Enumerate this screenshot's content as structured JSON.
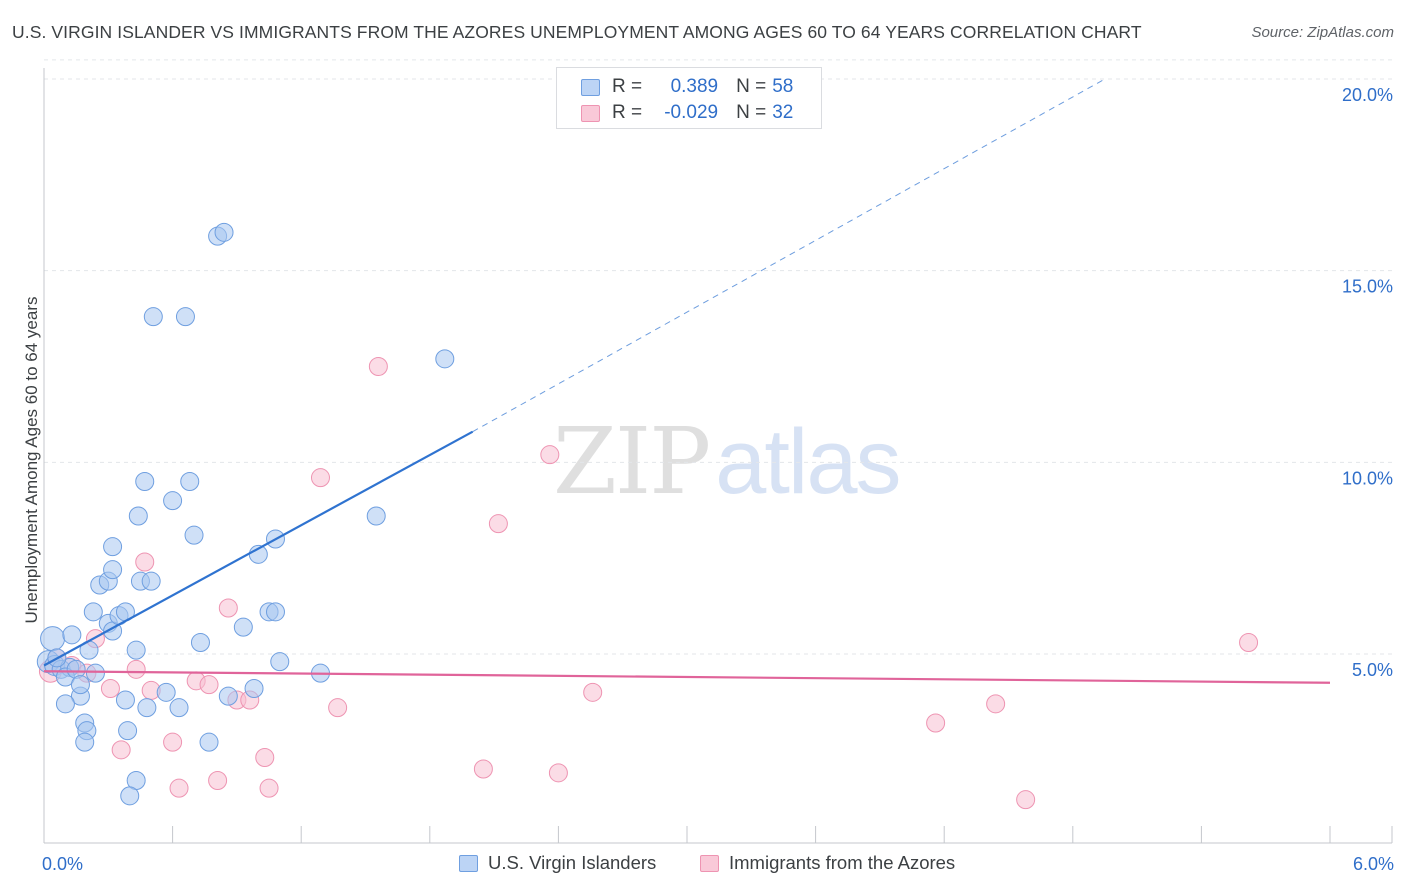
{
  "title": "U.S. VIRGIN ISLANDER VS IMMIGRANTS FROM THE AZORES UNEMPLOYMENT AMONG AGES 60 TO 64 YEARS CORRELATION CHART",
  "source": "Source: ZipAtlas.com",
  "watermark": {
    "part1": "ZIP",
    "part2": "atlas"
  },
  "stats": {
    "row1": {
      "r_label": "R =",
      "r_value": "0.389",
      "n_label": "N =",
      "n_value": "58"
    },
    "row2": {
      "r_label": "R =",
      "r_value": "-0.029",
      "n_label": "N =",
      "n_value": "32"
    }
  },
  "legend": {
    "item1": "U.S. Virgin Islanders",
    "item2": "Immigrants from the Azores"
  },
  "colors": {
    "blue_fill": "#a8c6f0",
    "blue_stroke": "#6f9fe0",
    "blue_line": "#2f73d0",
    "pink_fill": "#f7bfd2",
    "pink_stroke": "#ee94b2",
    "pink_line": "#e0649a",
    "grid": "#e3e6ea",
    "axis": "#c4c7cc",
    "tick_label": "#2f6ec9"
  },
  "chart_data": {
    "type": "scatter",
    "title": "U.S. VIRGIN ISLANDER VS IMMIGRANTS FROM THE AZORES UNEMPLOYMENT AMONG AGES 60 TO 64 YEARS CORRELATION CHART",
    "xlabel": "",
    "ylabel": "Unemployment Among Ages 60 to 64 years",
    "xlim": [
      0,
      6
    ],
    "ylim": [
      0,
      20.5
    ],
    "x_tick_labels": [
      {
        "value": 0,
        "label": "0.0%"
      },
      {
        "value": 6,
        "label": "6.0%"
      }
    ],
    "y_ticks": [
      {
        "value": 5,
        "label": "5.0%"
      },
      {
        "value": 10,
        "label": "10.0%"
      },
      {
        "value": 15,
        "label": "15.0%"
      },
      {
        "value": 20,
        "label": "20.0%"
      }
    ],
    "x_minor_ticks": [
      0.6,
      1.2,
      1.8,
      2.4,
      3.0,
      3.6,
      4.2,
      4.8,
      5.4,
      6.0
    ],
    "series": [
      {
        "name": "U.S. Virgin Islanders",
        "color": "blue",
        "r": 0.389,
        "n": 58,
        "trend": {
          "x0": 0.0,
          "y0": 4.7,
          "x1": 2.0,
          "y1": 10.8,
          "dash_to_x": 4.95,
          "dash_to_y": 20.0
        },
        "points": [
          [
            0.04,
            5.4,
            16
          ],
          [
            0.02,
            4.8,
            14
          ],
          [
            0.05,
            4.7,
            12
          ],
          [
            0.08,
            4.6,
            10
          ],
          [
            0.12,
            4.65,
            10
          ],
          [
            0.1,
            4.4,
            10
          ],
          [
            0.13,
            5.5,
            10
          ],
          [
            0.15,
            4.6,
            10
          ],
          [
            0.17,
            3.9,
            10
          ],
          [
            0.1,
            3.7,
            10
          ],
          [
            0.17,
            4.2,
            10
          ],
          [
            0.21,
            5.1,
            10
          ],
          [
            0.24,
            4.5,
            10
          ],
          [
            0.19,
            3.2,
            10
          ],
          [
            0.2,
            3.0,
            10
          ],
          [
            0.19,
            2.7,
            10
          ],
          [
            0.23,
            6.1,
            10
          ],
          [
            0.26,
            6.8,
            10
          ],
          [
            0.3,
            6.9,
            10
          ],
          [
            0.3,
            5.8,
            10
          ],
          [
            0.32,
            5.6,
            10
          ],
          [
            0.35,
            6.0,
            10
          ],
          [
            0.38,
            6.1,
            10
          ],
          [
            0.32,
            7.2,
            10
          ],
          [
            0.32,
            7.8,
            10
          ],
          [
            0.38,
            3.8,
            10
          ],
          [
            0.39,
            3.0,
            10
          ],
          [
            0.43,
            5.1,
            10
          ],
          [
            0.43,
            1.7,
            10
          ],
          [
            0.4,
            1.3,
            10
          ],
          [
            0.45,
            6.9,
            10
          ],
          [
            0.5,
            6.9,
            10
          ],
          [
            0.44,
            8.6,
            10
          ],
          [
            0.47,
            9.5,
            10
          ],
          [
            0.51,
            13.8,
            10
          ],
          [
            0.48,
            3.6,
            10
          ],
          [
            0.57,
            4.0,
            10
          ],
          [
            0.6,
            9.0,
            10
          ],
          [
            0.63,
            3.6,
            10
          ],
          [
            0.66,
            13.8,
            10
          ],
          [
            0.68,
            9.5,
            10
          ],
          [
            0.7,
            8.1,
            10
          ],
          [
            0.73,
            5.3,
            10
          ],
          [
            0.77,
            2.7,
            10
          ],
          [
            0.81,
            15.9,
            10
          ],
          [
            0.84,
            16.0,
            10
          ],
          [
            0.86,
            3.9,
            10
          ],
          [
            0.93,
            5.7,
            10
          ],
          [
            0.98,
            4.1,
            10
          ],
          [
            1.0,
            7.6,
            10
          ],
          [
            1.05,
            6.1,
            10
          ],
          [
            1.08,
            6.1,
            10
          ],
          [
            1.08,
            8.0,
            10
          ],
          [
            1.1,
            4.8,
            10
          ],
          [
            1.29,
            4.5,
            10
          ],
          [
            1.55,
            8.6,
            10
          ],
          [
            1.87,
            12.7,
            10
          ],
          [
            0.06,
            4.9,
            10
          ]
        ]
      },
      {
        "name": "Immigrants from the Azores",
        "color": "pink",
        "r": -0.029,
        "n": 32,
        "trend": {
          "x0": 0.0,
          "y0": 4.55,
          "x1": 6.0,
          "y1": 4.25
        },
        "points": [
          [
            0.03,
            4.55,
            14
          ],
          [
            0.06,
            4.9,
            10
          ],
          [
            0.13,
            4.7,
            10
          ],
          [
            0.2,
            4.5,
            10
          ],
          [
            0.24,
            5.4,
            10
          ],
          [
            0.31,
            4.1,
            10
          ],
          [
            0.36,
            2.5,
            10
          ],
          [
            0.43,
            4.6,
            10
          ],
          [
            0.47,
            7.4,
            10
          ],
          [
            0.5,
            4.05,
            10
          ],
          [
            0.6,
            2.7,
            10
          ],
          [
            0.63,
            1.5,
            10
          ],
          [
            0.71,
            4.3,
            10
          ],
          [
            0.77,
            4.2,
            10
          ],
          [
            0.81,
            1.7,
            10
          ],
          [
            0.86,
            6.2,
            10
          ],
          [
            0.9,
            3.8,
            10
          ],
          [
            0.96,
            3.8,
            10
          ],
          [
            1.03,
            2.3,
            10
          ],
          [
            1.05,
            1.5,
            10
          ],
          [
            1.29,
            9.6,
            10
          ],
          [
            1.37,
            3.6,
            10
          ],
          [
            1.56,
            12.5,
            10
          ],
          [
            2.05,
            2.0,
            10
          ],
          [
            2.12,
            8.4,
            10
          ],
          [
            2.36,
            10.2,
            10
          ],
          [
            2.4,
            1.9,
            10
          ],
          [
            2.56,
            4.0,
            10
          ],
          [
            4.16,
            3.2,
            10
          ],
          [
            4.44,
            3.7,
            10
          ],
          [
            4.58,
            1.2,
            10
          ],
          [
            5.62,
            5.3,
            10
          ]
        ]
      }
    ]
  }
}
